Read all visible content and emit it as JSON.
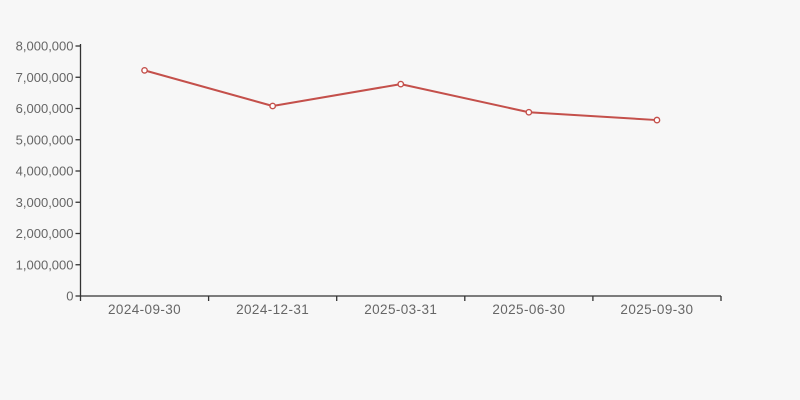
{
  "chart_data": {
    "type": "line",
    "title": "",
    "xlabel": "",
    "ylabel": "",
    "categories": [
      "2024-09-30",
      "2024-12-31",
      "2025-03-31",
      "2025-06-30",
      "2025-09-30"
    ],
    "values": [
      7220000,
      6080000,
      6780000,
      5880000,
      5630000
    ],
    "ylim": [
      0,
      8000000
    ],
    "y_tick_step": 1000000,
    "y_tick_labels": [
      "0",
      "1,000,000",
      "2,000,000",
      "3,000,000",
      "4,000,000",
      "5,000,000",
      "6,000,000",
      "7,000,000",
      "8,000,000"
    ],
    "grid": false,
    "legend": false,
    "marker": "open-circle",
    "colors": {
      "background": "#f7f7f7",
      "line": "#c4504b",
      "marker_fill": "#ffffff",
      "axis": "#333333",
      "tick_label": "#666666"
    }
  }
}
